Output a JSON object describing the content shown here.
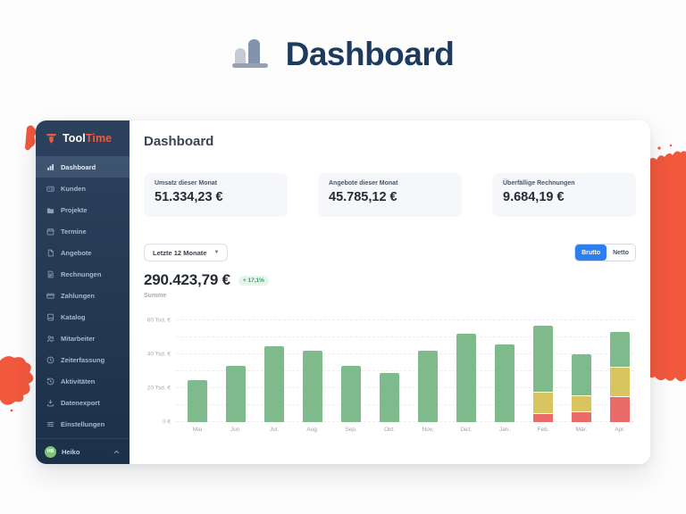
{
  "hero": {
    "title": "Dashboard"
  },
  "sidebar": {
    "logo_tool": "Tool",
    "logo_time": "Time",
    "items": [
      {
        "id": "dashboard",
        "label": "Dashboard",
        "icon": "bar-chart-icon",
        "active": true
      },
      {
        "id": "kunden",
        "label": "Kunden",
        "icon": "id-card-icon",
        "active": false
      },
      {
        "id": "projekte",
        "label": "Projekte",
        "icon": "folder-icon",
        "active": false
      },
      {
        "id": "termine",
        "label": "Termine",
        "icon": "calendar-icon",
        "active": false
      },
      {
        "id": "angebote",
        "label": "Angebote",
        "icon": "file-icon",
        "active": false
      },
      {
        "id": "rechnungen",
        "label": "Rechnungen",
        "icon": "invoice-icon",
        "active": false
      },
      {
        "id": "zahlungen",
        "label": "Zahlungen",
        "icon": "card-icon",
        "active": false
      },
      {
        "id": "katalog",
        "label": "Katalog",
        "icon": "book-icon",
        "active": false
      },
      {
        "id": "mitarbeiter",
        "label": "Mitarbeiter",
        "icon": "users-icon",
        "active": false
      },
      {
        "id": "zeiterfassung",
        "label": "Zeiterfassung",
        "icon": "clock-icon",
        "active": false
      },
      {
        "id": "aktivitaeten",
        "label": "Aktivitäten",
        "icon": "history-icon",
        "active": false
      },
      {
        "id": "datenexport",
        "label": "Datenexport",
        "icon": "download-icon",
        "active": false
      },
      {
        "id": "einstellungen",
        "label": "Einstellungen",
        "icon": "sliders-icon",
        "active": false
      }
    ],
    "user": {
      "name": "Heiko",
      "initials": "HB"
    }
  },
  "main": {
    "heading": "Dashboard",
    "stat_cards": [
      {
        "label": "Umsatz dieser Monat",
        "value": "51.334,23 €"
      },
      {
        "label": "Angebote dieser Monat",
        "value": "45.785,12 €"
      },
      {
        "label": "Überfällige Rechnungen",
        "value": "9.684,19 €"
      }
    ],
    "filter": {
      "range_label": "Letzte 12 Monate"
    },
    "summary": {
      "value": "290.423,79 €",
      "delta": "+ 17,1%",
      "caption": "Summe"
    },
    "toggle": {
      "options": [
        "Brutto",
        "Netto"
      ],
      "selected": "Brutto"
    }
  },
  "chart_data": {
    "type": "bar",
    "stacked": true,
    "categories": [
      "Mai",
      "Jun.",
      "Jul.",
      "Aug.",
      "Sep.",
      "Okt.",
      "Nov.",
      "Dez.",
      "Jan.",
      "Feb.",
      "Mär.",
      "Apr."
    ],
    "series": [
      {
        "name": "red",
        "color": "#E96C68",
        "values": [
          0,
          0,
          0,
          0,
          0,
          0,
          0,
          0,
          0,
          4.5,
          6,
          14.5
        ]
      },
      {
        "name": "yellow",
        "color": "#D9C55F",
        "values": [
          0,
          0,
          0,
          0,
          0,
          0,
          0,
          0,
          0,
          12.5,
          9,
          17
        ]
      },
      {
        "name": "green",
        "color": "#7FBA8C",
        "values": [
          25,
          33,
          45,
          42,
          33,
          29,
          42,
          52,
          46,
          39,
          24,
          20.5
        ]
      }
    ],
    "unit": "Tsd. €",
    "ylim": [
      0,
      60
    ],
    "yticks": [
      {
        "label": "60 Tsd. €",
        "value": 60
      },
      {
        "label": "40 Tsd. €",
        "value": 40
      },
      {
        "label": "20 Tsd. €",
        "value": 20
      },
      {
        "label": "0 €",
        "value": 0
      }
    ],
    "grid": true,
    "legend": false
  },
  "colors": {
    "accent_orange": "#F2583C",
    "sidebar_navy": "#24384F",
    "toggle_blue": "#2D7FF0",
    "bar_green": "#7FBA8C",
    "bar_yellow": "#D9C55F",
    "bar_red": "#E96C68",
    "badge_green": "#2FA463",
    "title_navy": "#1D3A5F"
  }
}
